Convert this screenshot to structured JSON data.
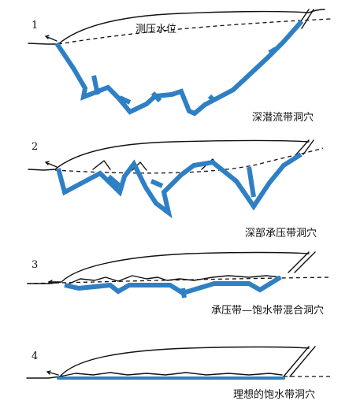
{
  "panels": [
    {
      "number": "1",
      "caption": "深潜流带洞穴",
      "annotation": "测压水位"
    },
    {
      "number": "2",
      "caption": "深部承压带洞穴"
    },
    {
      "number": "3",
      "caption": "承压带—饱水带混合洞穴"
    },
    {
      "number": "4",
      "caption": "理想的饱水带洞穴"
    }
  ],
  "colors": {
    "cave": "#2f7fc4",
    "line": "#111111"
  }
}
